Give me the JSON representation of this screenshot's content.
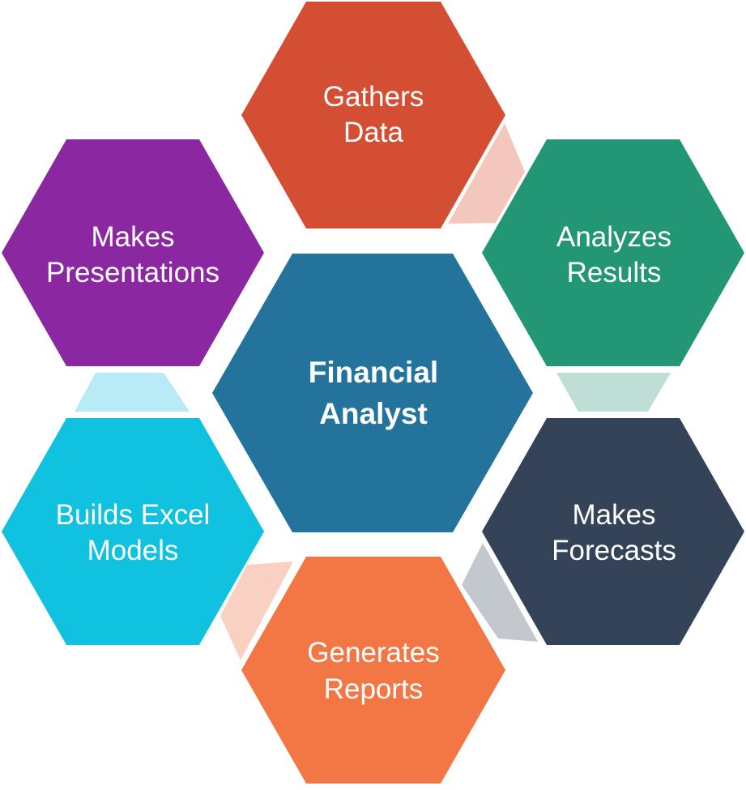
{
  "colors": {
    "background": "#ffffff",
    "text": "#ffffff",
    "center": "#24739c",
    "gathers": "#d34e33",
    "analyzes": "#229675",
    "forecasts": "#344357",
    "reports": "#f37745",
    "excel": "#10c2df",
    "presentations": "#8a27a1",
    "connector_gathers_analyzes": "#f3c7bd",
    "connector_analyzes_forecasts": "#bfdfd6",
    "connector_forecasts_reports": "#c3c7ce",
    "connector_reports_excel": "#f9d1c2",
    "connector_excel_presentations": "#b8ebf5"
  },
  "center": {
    "line1": "Financial",
    "line2": "Analyst"
  },
  "roles": [
    {
      "id": "gathers",
      "line1": "Gathers",
      "line2": "Data"
    },
    {
      "id": "analyzes",
      "line1": "Analyzes",
      "line2": "Results"
    },
    {
      "id": "forecasts",
      "line1": "Makes",
      "line2": "Forecasts"
    },
    {
      "id": "reports",
      "line1": "Generates",
      "line2": "Reports"
    },
    {
      "id": "excel",
      "line1": "Builds Excel",
      "line2": "Models"
    },
    {
      "id": "presentations",
      "line1": "Makes",
      "line2": "Presentations"
    }
  ]
}
